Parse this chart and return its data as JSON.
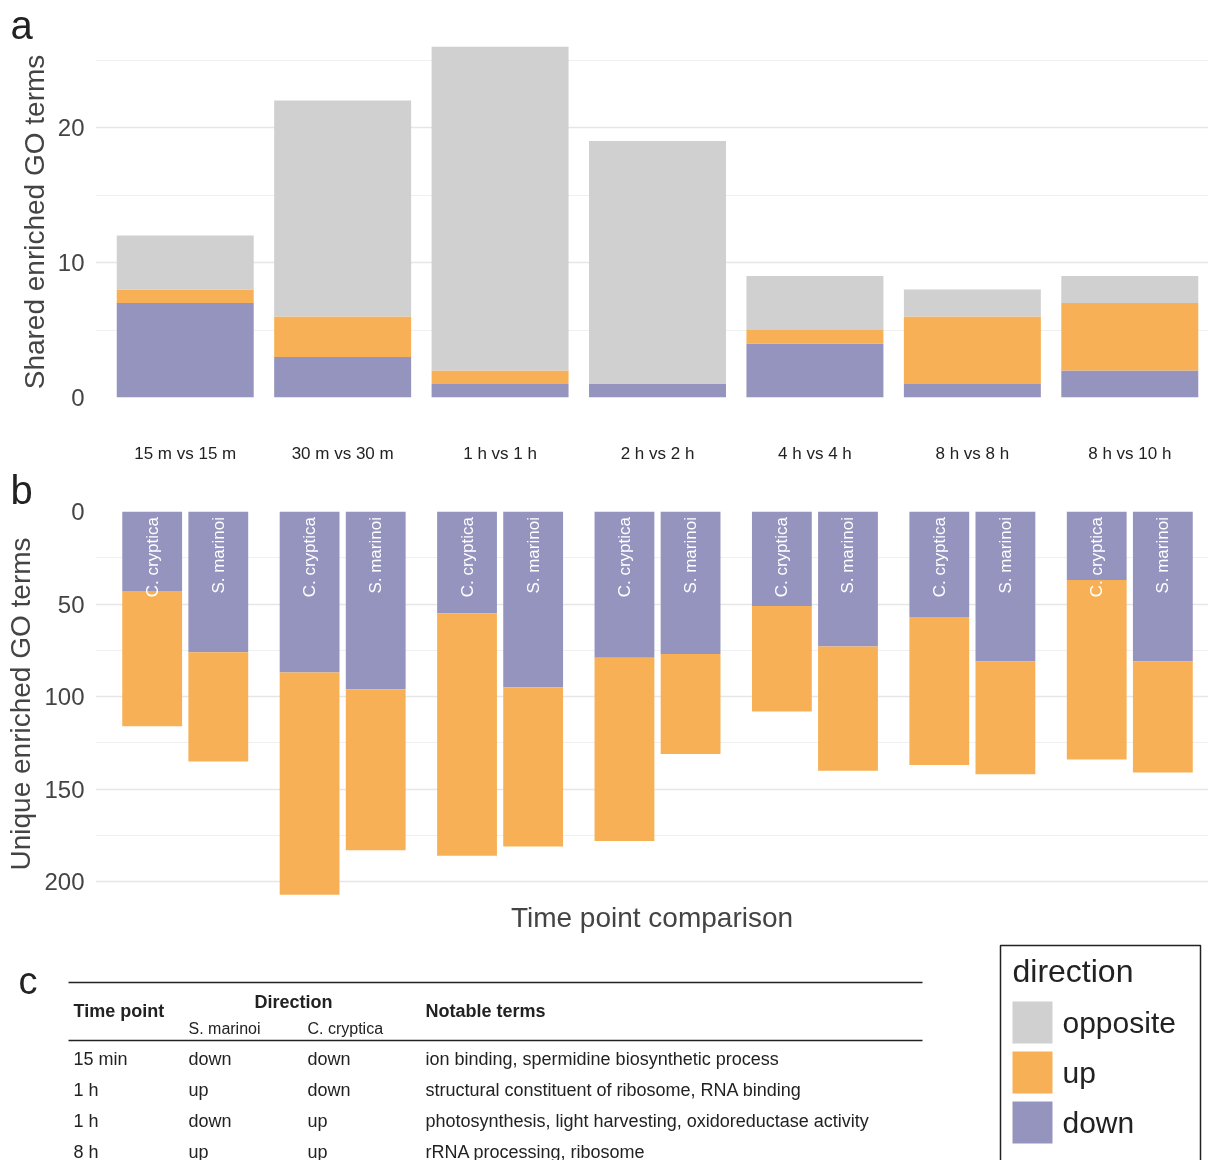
{
  "chart_data": [
    {
      "type": "bar",
      "stacked": true,
      "annotations": [
        "a"
      ],
      "ylabel": "Shared enriched GO terms",
      "categories": [
        "15 m vs 15 m",
        "30 m vs 30 m",
        "1 h vs 1 h",
        "2 h vs 2 h",
        "4 h vs 4 h",
        "8 h vs 8 h",
        "8 h vs 10 h"
      ],
      "series": [
        {
          "name": "down",
          "color": "#9594be",
          "values": [
            7,
            3,
            1,
            1,
            4,
            1,
            2
          ]
        },
        {
          "name": "up",
          "color": "#f7b055",
          "values": [
            1,
            3,
            1,
            0,
            1,
            5,
            5
          ]
        },
        {
          "name": "opposite",
          "color": "#d0d0d0",
          "values": [
            4,
            16,
            24,
            18,
            4,
            2,
            2
          ]
        }
      ],
      "ylim": [
        0,
        26
      ],
      "yticks": [
        0,
        10,
        20
      ],
      "grid": "y",
      "legend": "bottom right",
      "legend_title": "direction"
    },
    {
      "type": "bar",
      "stacked": true,
      "annotations": [
        "b"
      ],
      "ylabel": "Unique enriched GO terms",
      "xlabel": "Time point comparison",
      "categories": [
        "C. cryptica",
        "S. marinoi",
        "C. cryptica",
        "S. marinoi",
        "C. cryptica",
        "S. marinoi",
        "C. cryptica",
        "S. marinoi",
        "C. cryptica",
        "S. marinoi",
        "C. cryptica",
        "S. marinoi",
        "C. cryptica",
        "S. marinoi"
      ],
      "series": [
        {
          "color": "#9594be",
          "values": [
            43,
            76,
            87,
            96,
            55,
            95,
            79,
            77,
            51,
            73,
            57,
            81,
            37,
            81
          ]
        },
        {
          "color": "#f7b055",
          "values": [
            73,
            59,
            120,
            87,
            131,
            86,
            99,
            54,
            57,
            67,
            80,
            61,
            97,
            60
          ]
        }
      ],
      "ylim": [
        208,
        0
      ],
      "yticks": [
        0,
        50,
        100,
        150,
        200
      ],
      "grid": "y",
      "tick_labels": "y"
    },
    {
      "type": "other",
      "annotations": [
        "c",
        "Time point",
        "Direction",
        "S. marinoi",
        "C. cryptica",
        "Notable terms",
        "15 min",
        "down",
        "down",
        "ion binding, spermidine biosynthetic process",
        "1 h",
        "up",
        "down",
        "structural constituent of ribosome, RNA binding",
        "1 h",
        "down",
        "up",
        "photosynthesis, light harvesting, oxidoreductase activity",
        "8 h",
        "up",
        "up",
        "rRNA processing, ribosome"
      ]
    }
  ]
}
